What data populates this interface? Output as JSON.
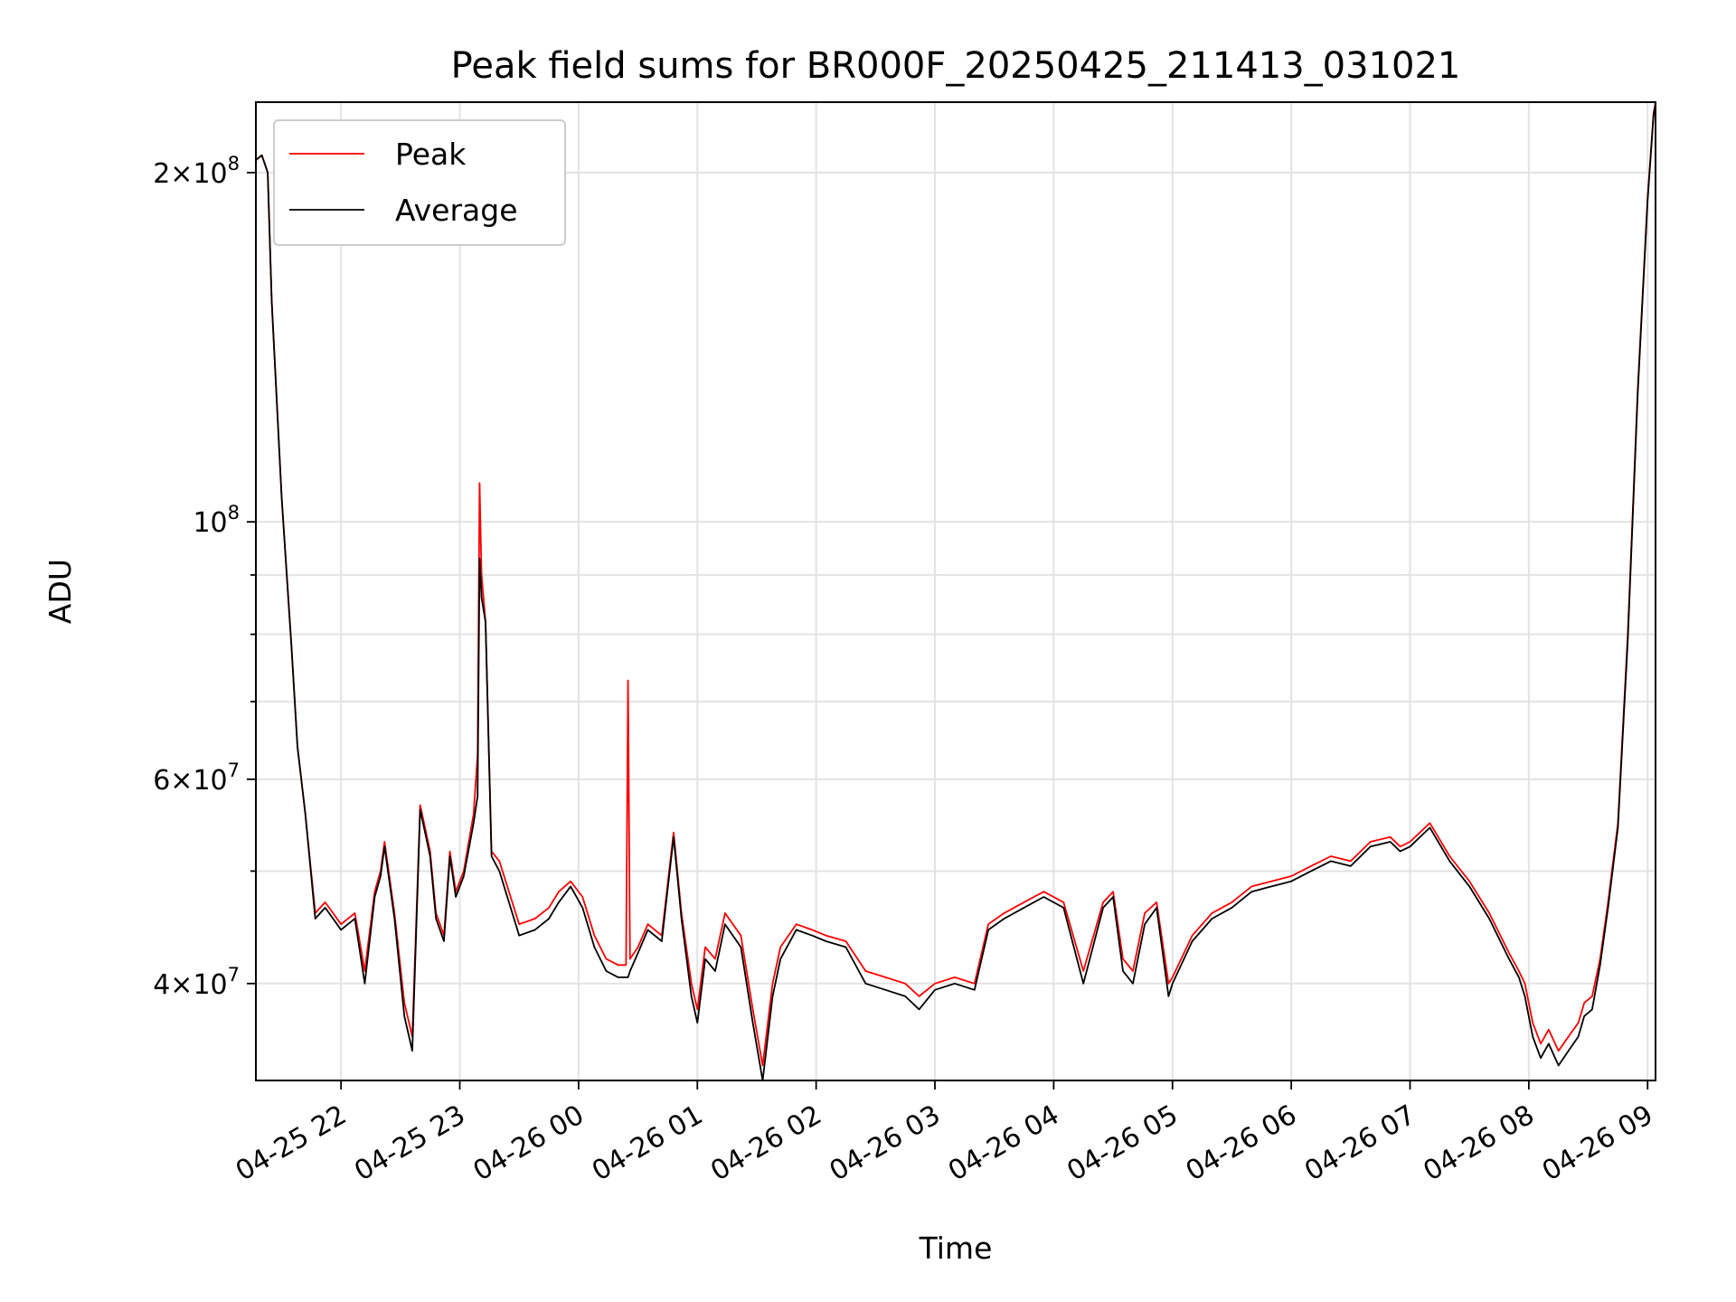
{
  "chart_data": {
    "type": "line",
    "title": "Peak field sums for BR000F_20250425_211413_031021",
    "xlabel": "Time",
    "ylabel": "ADU",
    "yscale": "log",
    "xlim": [
      "2025-04-25 21:17",
      "2025-04-26 09:04"
    ],
    "ylim": [
      33000000,
      230000000
    ],
    "grid": true,
    "legend_placement": "top-left",
    "x_ticks": [
      "2025-04-25 22:00",
      "2025-04-25 23:00",
      "2025-04-26 00:00",
      "2025-04-26 01:00",
      "2025-04-26 02:00",
      "2025-04-26 03:00",
      "2025-04-26 04:00",
      "2025-04-26 05:00",
      "2025-04-26 06:00",
      "2025-04-26 07:00",
      "2025-04-26 08:00",
      "2025-04-26 09:00"
    ],
    "x_tick_labels": [
      "04-25 22",
      "04-25 23",
      "04-26 00",
      "04-26 01",
      "04-26 02",
      "04-26 03",
      "04-26 04",
      "04-26 05",
      "04-26 06",
      "04-26 07",
      "04-26 08",
      "04-26 09"
    ],
    "y_ticks": [
      {
        "value": 40000000,
        "mantissa": "4",
        "exp": "7"
      },
      {
        "value": 60000000,
        "mantissa": "6",
        "exp": "7"
      },
      {
        "value": 100000000,
        "mantissa": "",
        "exp": "8"
      },
      {
        "value": 200000000,
        "mantissa": "2",
        "exp": "8"
      }
    ],
    "y_minor_ticks": [
      50000000,
      70000000,
      80000000,
      90000000
    ],
    "x": [
      "2025-04-25 21:17",
      "2025-04-25 21:20",
      "2025-04-25 21:23",
      "2025-04-25 21:25",
      "2025-04-25 21:30",
      "2025-04-25 21:35",
      "2025-04-25 21:38",
      "2025-04-25 21:42",
      "2025-04-25 21:47",
      "2025-04-25 21:52",
      "2025-04-25 21:56",
      "2025-04-25 22:00",
      "2025-04-25 22:07",
      "2025-04-25 22:12",
      "2025-04-25 22:17",
      "2025-04-25 22:20",
      "2025-04-25 22:22",
      "2025-04-25 22:27",
      "2025-04-25 22:32",
      "2025-04-25 22:36",
      "2025-04-25 22:40",
      "2025-04-25 22:45",
      "2025-04-25 22:48",
      "2025-04-25 22:52",
      "2025-04-25 22:55",
      "2025-04-25 22:58",
      "2025-04-25 23:02",
      "2025-04-25 23:07",
      "2025-04-25 23:09",
      "2025-04-25 23:10",
      "2025-04-25 23:11",
      "2025-04-25 23:13",
      "2025-04-25 23:16",
      "2025-04-25 23:20",
      "2025-04-25 23:30",
      "2025-04-25 23:38",
      "2025-04-25 23:45",
      "2025-04-25 23:50",
      "2025-04-25 23:56",
      "2025-04-26 00:02",
      "2025-04-26 00:08",
      "2025-04-26 00:14",
      "2025-04-26 00:20",
      "2025-04-26 00:24",
      "2025-04-26 00:25",
      "2025-04-26 00:26",
      "2025-04-26 00:30",
      "2025-04-26 00:35",
      "2025-04-26 00:42",
      "2025-04-26 00:48",
      "2025-04-26 00:52",
      "2025-04-26 00:57",
      "2025-04-26 01:00",
      "2025-04-26 01:04",
      "2025-04-26 01:09",
      "2025-04-26 01:14",
      "2025-04-26 01:22",
      "2025-04-26 01:28",
      "2025-04-26 01:33",
      "2025-04-26 01:38",
      "2025-04-26 01:42",
      "2025-04-26 01:50",
      "2025-04-26 01:58",
      "2025-04-26 02:05",
      "2025-04-26 02:15",
      "2025-04-26 02:25",
      "2025-04-26 02:35",
      "2025-04-26 02:45",
      "2025-04-26 02:52",
      "2025-04-26 03:00",
      "2025-04-26 03:10",
      "2025-04-26 03:20",
      "2025-04-26 03:27",
      "2025-04-26 03:35",
      "2025-04-26 03:45",
      "2025-04-26 03:55",
      "2025-04-26 04:05",
      "2025-04-26 04:15",
      "2025-04-26 04:25",
      "2025-04-26 04:30",
      "2025-04-26 04:35",
      "2025-04-26 04:40",
      "2025-04-26 04:46",
      "2025-04-26 04:52",
      "2025-04-26 04:58",
      "2025-04-26 05:00",
      "2025-04-26 05:10",
      "2025-04-26 05:20",
      "2025-04-26 05:30",
      "2025-04-26 05:40",
      "2025-04-26 05:50",
      "2025-04-26 06:00",
      "2025-04-26 06:10",
      "2025-04-26 06:20",
      "2025-04-26 06:30",
      "2025-04-26 06:40",
      "2025-04-26 06:50",
      "2025-04-26 06:55",
      "2025-04-26 07:00",
      "2025-04-26 07:10",
      "2025-04-26 07:20",
      "2025-04-26 07:30",
      "2025-04-26 07:40",
      "2025-04-26 07:50",
      "2025-04-26 07:55",
      "2025-04-26 07:58",
      "2025-04-26 08:02",
      "2025-04-26 08:06",
      "2025-04-26 08:10",
      "2025-04-26 08:15",
      "2025-04-26 08:20",
      "2025-04-26 08:25",
      "2025-04-26 08:28",
      "2025-04-26 08:32",
      "2025-04-26 08:36",
      "2025-04-26 08:40",
      "2025-04-26 08:45",
      "2025-04-26 08:50",
      "2025-04-26 08:55",
      "2025-04-26 09:00",
      "2025-04-26 09:03",
      "2025-04-26 09:04"
    ],
    "series": [
      {
        "name": "Peak",
        "color": "#ff0000",
        "values": [
          205000000,
          207000000,
          200000000,
          155000000,
          105000000,
          78000000,
          64000000,
          56000000,
          46000000,
          47000000,
          46000000,
          45000000,
          46000000,
          41000000,
          48000000,
          50000000,
          53000000,
          46000000,
          38500000,
          36000000,
          57000000,
          52000000,
          46000000,
          44000000,
          52000000,
          48000000,
          50000000,
          56000000,
          63000000,
          108000000,
          90000000,
          82000000,
          52000000,
          51000000,
          45000000,
          45500000,
          46500000,
          48000000,
          49000000,
          47500000,
          44000000,
          42000000,
          41500000,
          41500000,
          73000000,
          42000000,
          43000000,
          45000000,
          44000000,
          54000000,
          46000000,
          40000000,
          38000000,
          43000000,
          42000000,
          46000000,
          44000000,
          38000000,
          34000000,
          40000000,
          43000000,
          45000000,
          44500000,
          44000000,
          43500000,
          41000000,
          40500000,
          40000000,
          39000000,
          40000000,
          40500000,
          40000000,
          45000000,
          46000000,
          47000000,
          48000000,
          47000000,
          41000000,
          47000000,
          48000000,
          42000000,
          41000000,
          46000000,
          47000000,
          40000000,
          40500000,
          44000000,
          46000000,
          47000000,
          48500000,
          49000000,
          49500000,
          50500000,
          51500000,
          51000000,
          53000000,
          53500000,
          52500000,
          53000000,
          55000000,
          51500000,
          49000000,
          46000000,
          42500000,
          41000000,
          40000000,
          37000000,
          35500000,
          36500000,
          35000000,
          36000000,
          37000000,
          38500000,
          39000000,
          42000000,
          47000000,
          55000000,
          80000000,
          130000000,
          190000000,
          225000000,
          230000000
        ]
      },
      {
        "name": "Average",
        "color": "#000000",
        "values": [
          205000000,
          207000000,
          200000000,
          155000000,
          105000000,
          78000000,
          64000000,
          56000000,
          45500000,
          46500000,
          45500000,
          44500000,
          45500000,
          40000000,
          47500000,
          49500000,
          52500000,
          45500000,
          37500000,
          35000000,
          56500000,
          51500000,
          45500000,
          43500000,
          51500000,
          47500000,
          49500000,
          55000000,
          58000000,
          93000000,
          86000000,
          82000000,
          51500000,
          50000000,
          44000000,
          44500000,
          45500000,
          47000000,
          48500000,
          46500000,
          43000000,
          41000000,
          40500000,
          40500000,
          40500000,
          41000000,
          42500000,
          44500000,
          43500000,
          53500000,
          45500000,
          39000000,
          37000000,
          42000000,
          41000000,
          45000000,
          43000000,
          37000000,
          33000000,
          39000000,
          42000000,
          44500000,
          44000000,
          43500000,
          43000000,
          40000000,
          39500000,
          39000000,
          38000000,
          39500000,
          40000000,
          39500000,
          44500000,
          45500000,
          46500000,
          47500000,
          46500000,
          40000000,
          46500000,
          47500000,
          41000000,
          40000000,
          45000000,
          46500000,
          39000000,
          40000000,
          43500000,
          45500000,
          46500000,
          48000000,
          48500000,
          49000000,
          50000000,
          51000000,
          50500000,
          52500000,
          53000000,
          52000000,
          52500000,
          54500000,
          51000000,
          48500000,
          45500000,
          42000000,
          40500000,
          39000000,
          36000000,
          34500000,
          35500000,
          34000000,
          35000000,
          36000000,
          37500000,
          38000000,
          41500000,
          46500000,
          54500000,
          79000000,
          129000000,
          189000000,
          224000000,
          229000000
        ]
      }
    ]
  }
}
